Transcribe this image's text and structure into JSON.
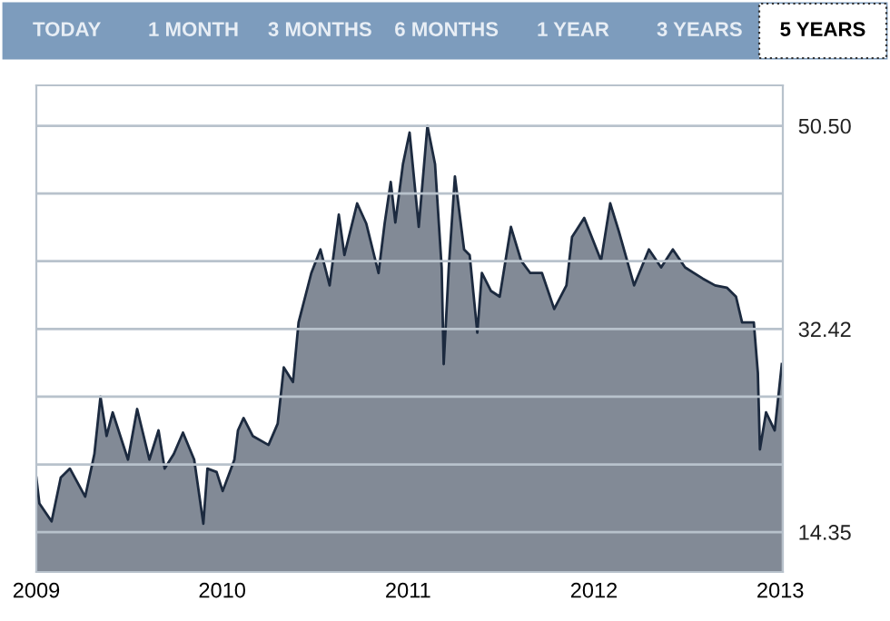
{
  "chart_data": {
    "type": "area",
    "annotations": [
      "TODAY",
      "1 MONTH",
      "3 MONTHS",
      "6 MONTHS",
      "1 YEAR",
      "3 YEARS",
      "5 YEARS"
    ],
    "x": [
      "2009-01-01",
      "2009-01-07",
      "2009-01-31",
      "2009-02-18",
      "2009-03-08",
      "2009-04-07",
      "2009-04-25",
      "2009-05-07",
      "2009-05-19",
      "2009-05-31",
      "2009-06-30",
      "2009-07-18",
      "2009-08-11",
      "2009-08-29",
      "2009-09-10",
      "2009-09-28",
      "2009-10-16",
      "2009-11-07",
      "2009-11-25",
      "2009-12-03",
      "2009-12-21",
      "2010-01-02",
      "2010-01-25",
      "2010-02-01",
      "2010-02-12",
      "2010-03-02",
      "2010-04-02",
      "2010-04-20",
      "2010-05-02",
      "2010-05-20",
      "2010-05-31",
      "2010-06-25",
      "2010-07-13",
      "2010-07-31",
      "2010-08-18",
      "2010-08-29",
      "2010-09-23",
      "2010-10-11",
      "2010-11-04",
      "2010-11-16",
      "2010-11-28",
      "2010-12-07",
      "2010-12-22",
      "2011-01-04",
      "2011-01-22",
      "2011-02-08",
      "2011-02-23",
      "2011-03-08",
      "2011-03-12",
      "2011-03-22",
      "2011-04-03",
      "2011-04-21",
      "2011-05-02",
      "2011-05-17",
      "2011-05-26",
      "2011-06-13",
      "2011-06-30",
      "2011-07-22",
      "2011-08-11",
      "2011-08-29",
      "2011-09-21",
      "2011-10-15",
      "2011-11-08",
      "2011-11-19",
      "2011-12-13",
      "2012-01-15",
      "2012-02-02",
      "2012-02-19",
      "2012-03-20",
      "2012-04-18",
      "2012-05-12",
      "2012-06-04",
      "2012-06-28",
      "2012-08-02",
      "2012-08-26",
      "2012-09-18",
      "2012-10-06",
      "2012-10-18",
      "2012-11-10",
      "2012-11-18",
      "2012-11-22",
      "2012-12-04",
      "2012-12-21",
      "2013-01-04"
    ],
    "series": [
      {
        "color": "#1c2a3f",
        "values": [
          19.2,
          16.9,
          15.3,
          19.2,
          20.0,
          17.5,
          21.3,
          26.4,
          22.9,
          25.0,
          20.8,
          25.3,
          20.8,
          23.4,
          20.0,
          21.3,
          23.2,
          20.8,
          15.1,
          20.0,
          19.7,
          18.0,
          20.8,
          23.4,
          24.5,
          22.9,
          22.1,
          24.0,
          29.0,
          27.7,
          33.0,
          37.4,
          39.5,
          36.3,
          42.6,
          39.0,
          43.6,
          41.8,
          37.4,
          41.8,
          45.5,
          41.9,
          47.1,
          49.9,
          41.5,
          50.5,
          47.1,
          37.9,
          29.3,
          37.9,
          46.0,
          39.5,
          39.0,
          32.1,
          37.4,
          35.8,
          35.3,
          41.5,
          38.5,
          37.4,
          37.4,
          34.2,
          36.3,
          40.6,
          42.3,
          38.5,
          43.6,
          41.1,
          36.3,
          39.5,
          37.9,
          39.5,
          37.9,
          36.9,
          36.3,
          36.1,
          35.3,
          33.0,
          33.0,
          28.5,
          21.7,
          25.0,
          23.4,
          29.3
        ]
      }
    ],
    "xlim": [
      "2009-01-01",
      "2013-01-06"
    ],
    "xticks": [
      {
        "value": "2009-01-01",
        "label": "2009"
      },
      {
        "value": "2010-01-01",
        "label": "2010"
      },
      {
        "value": "2011-01-01",
        "label": "2011"
      },
      {
        "value": "2012-01-01",
        "label": "2012"
      },
      {
        "value": "2013-01-01",
        "label": "2013"
      }
    ],
    "ylim": [
      10.8,
      54.1
    ],
    "yticks": [
      {
        "value": 14.35,
        "label": "14.35"
      },
      {
        "value": 20.37,
        "label": null
      },
      {
        "value": 26.4,
        "label": null
      },
      {
        "value": 32.42,
        "label": "32.42"
      },
      {
        "value": 38.45,
        "label": null
      },
      {
        "value": 44.47,
        "label": null
      },
      {
        "value": 50.5,
        "label": "50.50"
      }
    ],
    "grid": "y",
    "legend": false
  }
}
